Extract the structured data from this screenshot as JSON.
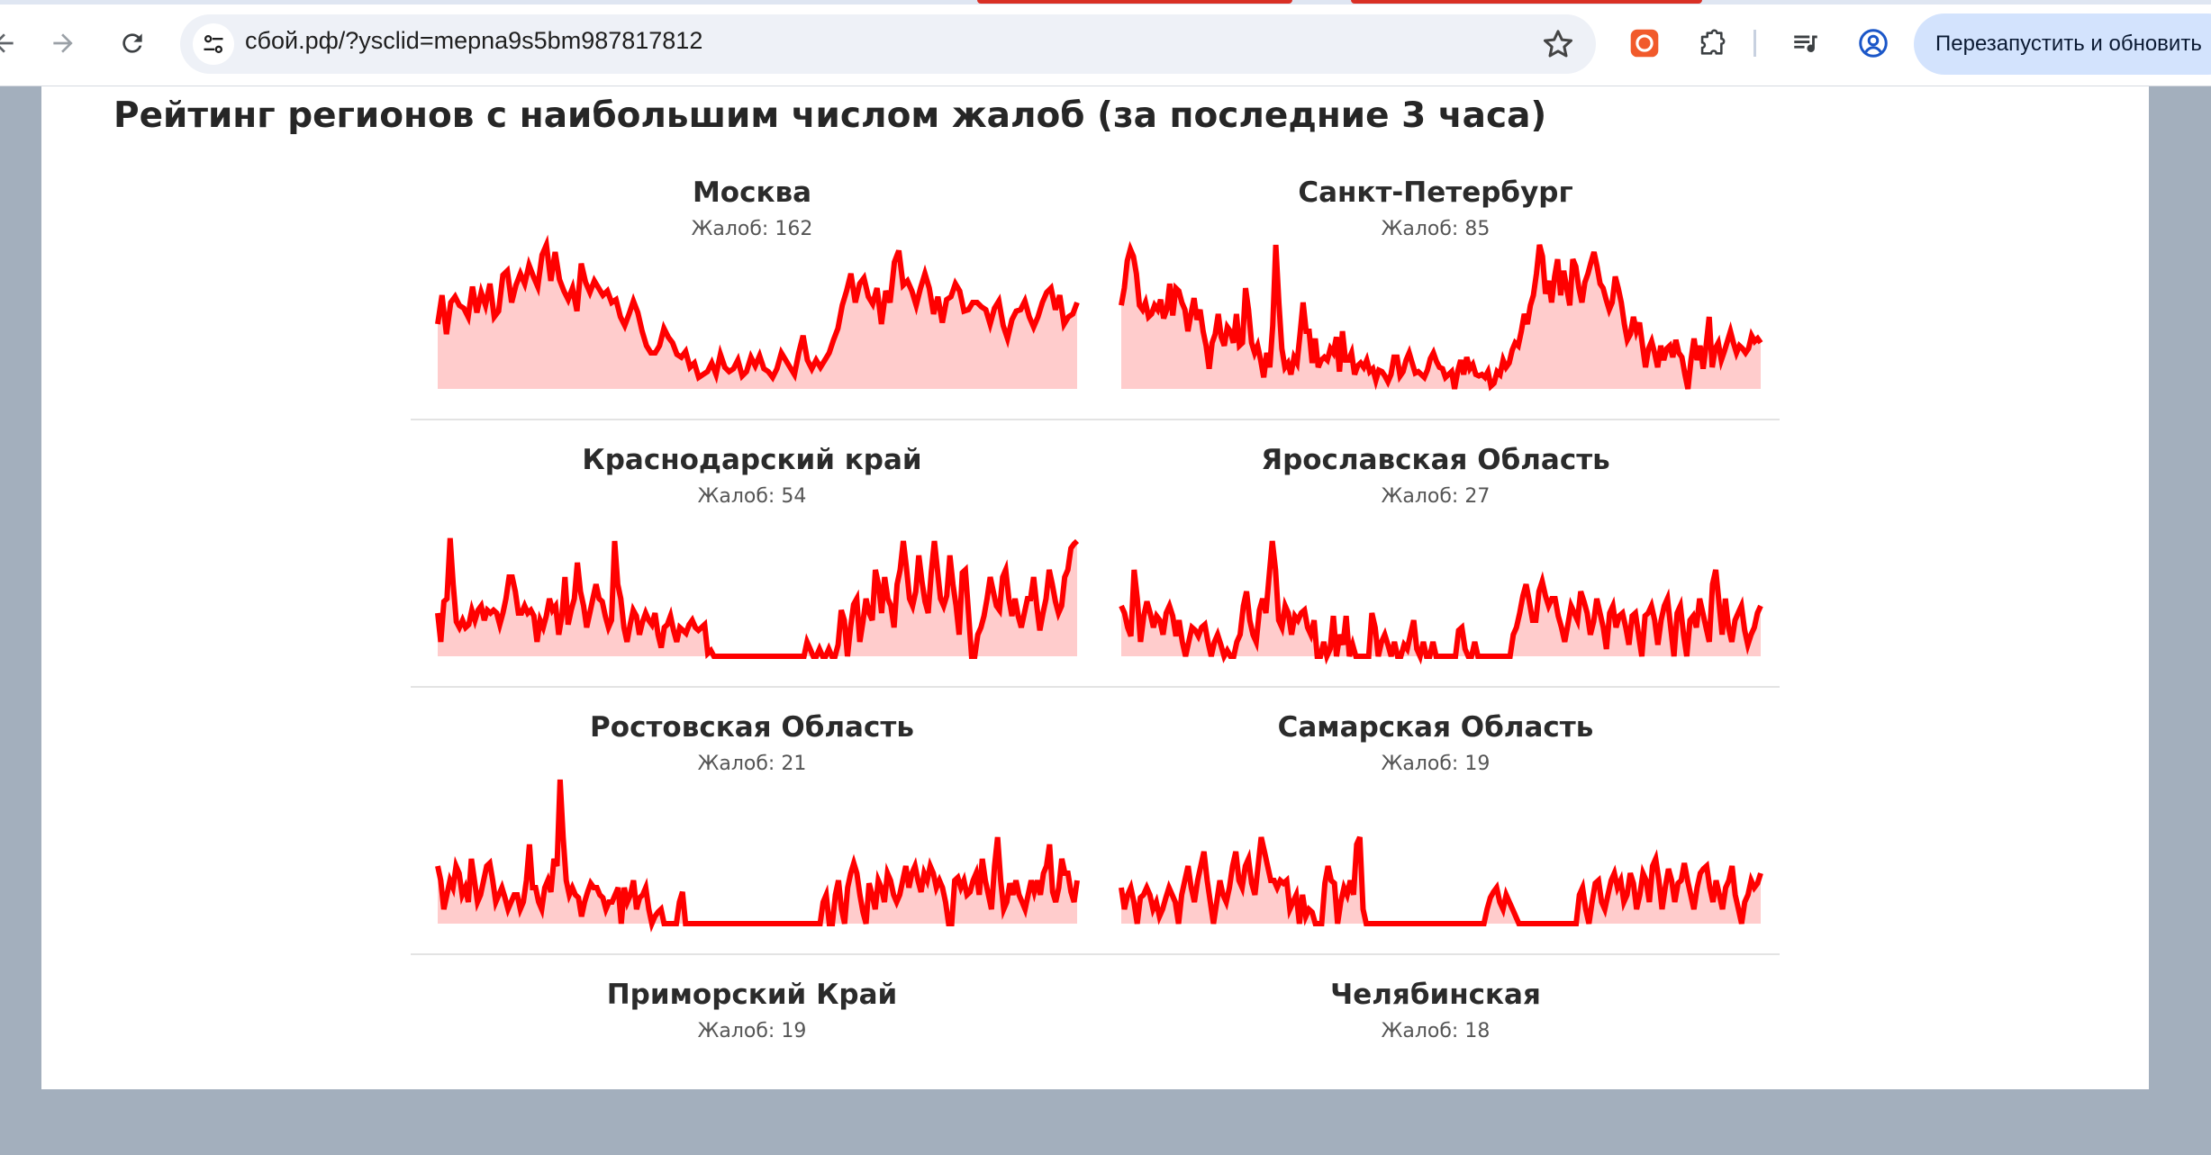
{
  "browser": {
    "url": "сбой.рф/?ysclid=mepna9s5bm987817812",
    "restart_label": "Перезапустить и обновить"
  },
  "page": {
    "heading": "Рейтинг регионов с наибольшим числом жалоб (за последние 3 часа)"
  },
  "colors": {
    "line": "#ff0000",
    "fill": "#ffcccc"
  },
  "chart_data": [
    {
      "type": "area",
      "title": "Москва",
      "subtitle": "Жалоб: 162",
      "values": [
        45,
        65,
        38,
        60,
        64,
        58,
        56,
        50,
        71,
        53,
        67,
        58,
        73,
        50,
        54,
        79,
        82,
        60,
        72,
        80,
        73,
        86,
        78,
        71,
        93,
        100,
        75,
        95,
        76,
        68,
        62,
        70,
        54,
        87,
        74,
        67,
        75,
        70,
        65,
        68,
        60,
        62,
        50,
        44,
        52,
        61,
        53,
        40,
        30,
        25,
        25,
        30,
        42,
        36,
        32,
        24,
        22,
        26,
        15,
        18,
        8,
        10,
        12,
        18,
        10,
        24,
        15,
        12,
        14,
        20,
        9,
        12,
        22,
        16,
        23,
        14,
        12,
        8,
        14,
        25,
        20,
        15,
        10,
        25,
        37,
        20,
        14,
        20,
        15,
        20,
        25,
        34,
        42,
        58,
        68,
        80,
        60,
        73,
        77,
        64,
        59,
        70,
        45,
        68,
        60,
        88,
        96,
        72,
        75,
        68,
        58,
        70,
        80,
        70,
        52,
        64,
        46,
        62,
        64,
        73,
        68,
        54,
        55,
        60,
        60,
        57,
        55,
        45,
        56,
        61,
        44,
        35,
        48,
        54,
        55,
        61,
        50,
        43,
        50,
        60,
        67,
        70,
        55,
        65,
        45,
        50,
        52,
        60
      ]
    },
    {
      "type": "area",
      "title": "Санкт-Петербург",
      "subtitle": "Жалоб: 85",
      "values": [
        58,
        70,
        89,
        97,
        92,
        80,
        58,
        55,
        60,
        50,
        52,
        58,
        55,
        62,
        49,
        55,
        73,
        51,
        70,
        68,
        60,
        55,
        40,
        52,
        63,
        48,
        55,
        40,
        30,
        14,
        32,
        38,
        52,
        36,
        30,
        43,
        40,
        32,
        52,
        30,
        32,
        70,
        55,
        32,
        25,
        30,
        20,
        8,
        25,
        15,
        44,
        100,
        60,
        28,
        15,
        18,
        10,
        22,
        18,
        38,
        60,
        40,
        40,
        18,
        35,
        15,
        20,
        22,
        20,
        28,
        25,
        36,
        12,
        40,
        20,
        20,
        25,
        10,
        16,
        18,
        15,
        20,
        12,
        14,
        6,
        13,
        12,
        9,
        5,
        10,
        22,
        22,
        9,
        12,
        20,
        25,
        18,
        11,
        12,
        10,
        8,
        13,
        21,
        25,
        19,
        15,
        14,
        8,
        10,
        12,
        0,
        12,
        20,
        10,
        22,
        14,
        17,
        10,
        9,
        10,
        8,
        12,
        2,
        4,
        12,
        10,
        20,
        15,
        18,
        27,
        32,
        30,
        40,
        52,
        45,
        58,
        65,
        80,
        100,
        92,
        66,
        75,
        60,
        78,
        90,
        65,
        82,
        70,
        58,
        90,
        85,
        70,
        60,
        74,
        80,
        88,
        95,
        85,
        73,
        70,
        62,
        55,
        60,
        78,
        70,
        60,
        45,
        34,
        38,
        50,
        40,
        46,
        30,
        15,
        28,
        33,
        25,
        15,
        30,
        20,
        28,
        30,
        22,
        34,
        25,
        22,
        10,
        0,
        20,
        35,
        20,
        30,
        14,
        30,
        50,
        15,
        28,
        32,
        20,
        26,
        33,
        40,
        32,
        25,
        30,
        28,
        25,
        28,
        37,
        33,
        35,
        32
      ]
    },
    {
      "type": "area",
      "title": "Краснодарский край",
      "subtitle": "Жалоб: 54",
      "values": [
        30,
        10,
        38,
        40,
        82,
        50,
        24,
        20,
        25,
        20,
        22,
        32,
        25,
        32,
        35,
        25,
        32,
        30,
        32,
        30,
        22,
        30,
        40,
        55,
        55,
        45,
        30,
        30,
        35,
        30,
        32,
        28,
        10,
        25,
        20,
        28,
        40,
        32,
        35,
        15,
        28,
        55,
        22,
        32,
        40,
        65,
        45,
        35,
        20,
        30,
        40,
        50,
        40,
        38,
        28,
        20,
        25,
        80,
        50,
        40,
        20,
        10,
        22,
        32,
        28,
        15,
        24,
        30,
        25,
        22,
        30,
        15,
        6,
        20,
        22,
        28,
        18,
        10,
        20,
        18,
        16,
        22,
        25,
        20,
        18,
        20,
        22,
        2,
        4,
        0,
        0,
        0,
        0,
        0,
        0,
        0,
        0,
        0,
        0,
        0,
        0,
        0,
        0,
        0,
        0,
        0,
        0,
        0,
        0,
        0,
        0,
        0,
        0,
        0,
        0,
        0,
        0,
        0,
        0,
        10,
        5,
        0,
        0,
        5,
        0,
        0,
        5,
        0,
        0,
        8,
        32,
        25,
        0,
        20,
        36,
        40,
        10,
        24,
        40,
        30,
        25,
        60,
        50,
        30,
        55,
        40,
        35,
        20,
        50,
        60,
        80,
        62,
        40,
        35,
        45,
        70,
        52,
        38,
        30,
        58,
        80,
        60,
        40,
        35,
        42,
        70,
        50,
        35,
        15,
        58,
        60,
        30,
        0,
        0,
        15,
        20,
        28,
        40,
        55,
        45,
        35,
        32,
        55,
        60,
        40,
        28,
        40,
        28,
        20,
        30,
        40,
        40,
        55,
        35,
        18,
        30,
        40,
        60,
        50,
        38,
        30,
        35,
        55,
        60,
        75,
        78,
        80
      ]
    },
    {
      "type": "area",
      "title": "Ярославская Область",
      "subtitle": "Жалоб: 27",
      "values": [
        35,
        30,
        20,
        14,
        60,
        40,
        10,
        28,
        38,
        30,
        20,
        28,
        25,
        15,
        30,
        35,
        28,
        14,
        25,
        10,
        0,
        10,
        20,
        18,
        14,
        20,
        22,
        10,
        0,
        10,
        15,
        8,
        0,
        4,
        0,
        0,
        10,
        15,
        35,
        45,
        25,
        15,
        10,
        32,
        40,
        30,
        55,
        80,
        60,
        25,
        20,
        35,
        30,
        15,
        28,
        25,
        30,
        32,
        20,
        15,
        25,
        0,
        0,
        10,
        0,
        5,
        28,
        0,
        15,
        8,
        28,
        0,
        8,
        0,
        0,
        0,
        0,
        0,
        30,
        20,
        0,
        10,
        15,
        8,
        0,
        10,
        0,
        0,
        8,
        5,
        15,
        25,
        5,
        0,
        10,
        0,
        0,
        10,
        0,
        0,
        0,
        0,
        0,
        0,
        0,
        18,
        20,
        5,
        0,
        0,
        10,
        0,
        0,
        0,
        0,
        0,
        0,
        0,
        0,
        0,
        0,
        0,
        15,
        20,
        30,
        42,
        50,
        38,
        25,
        25,
        45,
        52,
        42,
        35,
        40,
        40,
        28,
        20,
        10,
        22,
        35,
        30,
        25,
        45,
        38,
        30,
        15,
        24,
        40,
        30,
        20,
        5,
        30,
        35,
        20,
        28,
        30,
        20,
        8,
        28,
        30,
        15,
        0,
        28,
        30,
        35,
        25,
        8,
        25,
        35,
        40,
        20,
        0,
        30,
        35,
        15,
        0,
        25,
        28,
        20,
        40,
        30,
        20,
        10,
        50,
        60,
        38,
        15,
        40,
        20,
        10,
        25,
        30,
        35,
        18,
        8,
        15,
        20,
        30,
        35
      ]
    },
    {
      "type": "area",
      "title": "Ростовская Область",
      "subtitle": "Жалоб: 21",
      "values": [
        40,
        30,
        10,
        20,
        30,
        25,
        40,
        35,
        20,
        25,
        15,
        45,
        30,
        15,
        20,
        30,
        40,
        42,
        30,
        15,
        20,
        25,
        18,
        10,
        15,
        20,
        20,
        10,
        15,
        30,
        55,
        25,
        25,
        15,
        10,
        25,
        30,
        22,
        45,
        40,
        100,
        60,
        30,
        20,
        25,
        20,
        18,
        5,
        15,
        22,
        28,
        25,
        25,
        20,
        18,
        10,
        15,
        15,
        20,
        25,
        0,
        25,
        15,
        20,
        30,
        10,
        18,
        20,
        25,
        10,
        0,
        5,
        8,
        10,
        0,
        0,
        0,
        0,
        0,
        15,
        22,
        0,
        0,
        0,
        0,
        0,
        0,
        0,
        0,
        0,
        0,
        0,
        0,
        0,
        0,
        0,
        0,
        0,
        0,
        0,
        0,
        0,
        0,
        0,
        0,
        0,
        0,
        0,
        0,
        0,
        0,
        0,
        0,
        0,
        0,
        0,
        0,
        0,
        0,
        0,
        0,
        0,
        0,
        0,
        0,
        0,
        15,
        20,
        0,
        0,
        20,
        30,
        10,
        0,
        25,
        35,
        42,
        35,
        20,
        8,
        0,
        28,
        20,
        10,
        30,
        25,
        15,
        35,
        30,
        20,
        15,
        20,
        30,
        40,
        25,
        35,
        40,
        30,
        22,
        35,
        30,
        40,
        35,
        25,
        30,
        25,
        15,
        0,
        0,
        30,
        32,
        25,
        30,
        20,
        22,
        30,
        35,
        20,
        45,
        30,
        20,
        10,
        40,
        60,
        30,
        10,
        15,
        28,
        20,
        30,
        20,
        15,
        10,
        20,
        30,
        22,
        30,
        20,
        35,
        40,
        55,
        22,
        15,
        25,
        45,
        35,
        35,
        22,
        15,
        30
      ]
    },
    {
      "type": "area",
      "title": "Самарская Область",
      "subtitle": "Жалоб: 19",
      "values": [
        25,
        10,
        20,
        25,
        15,
        0,
        18,
        20,
        25,
        20,
        10,
        15,
        5,
        10,
        18,
        25,
        20,
        15,
        0,
        20,
        30,
        40,
        25,
        15,
        30,
        40,
        50,
        30,
        15,
        0,
        15,
        30,
        20,
        15,
        25,
        40,
        50,
        30,
        25,
        40,
        45,
        28,
        20,
        40,
        60,
        50,
        40,
        30,
        30,
        25,
        30,
        28,
        30,
        10,
        15,
        20,
        0,
        20,
        5,
        10,
        8,
        0,
        0,
        0,
        28,
        40,
        30,
        28,
        0,
        15,
        25,
        20,
        30,
        20,
        55,
        60,
        10,
        0,
        0,
        0,
        0,
        0,
        0,
        0,
        0,
        0,
        0,
        0,
        0,
        0,
        0,
        0,
        0,
        0,
        0,
        0,
        0,
        0,
        0,
        0,
        0,
        0,
        0,
        0,
        0,
        0,
        0,
        0,
        0,
        0,
        0,
        0,
        0,
        0,
        0,
        10,
        18,
        22,
        25,
        15,
        10,
        20,
        15,
        10,
        5,
        0,
        0,
        0,
        0,
        0,
        0,
        0,
        0,
        0,
        0,
        0,
        0,
        0,
        0,
        0,
        0,
        0,
        0,
        0,
        20,
        25,
        10,
        0,
        15,
        28,
        30,
        15,
        10,
        20,
        30,
        35,
        25,
        30,
        15,
        20,
        35,
        28,
        10,
        20,
        35,
        30,
        15,
        40,
        45,
        30,
        10,
        25,
        38,
        30,
        15,
        28,
        30,
        42,
        30,
        20,
        10,
        25,
        35,
        38,
        40,
        25,
        15,
        30,
        20,
        10,
        25,
        30,
        40,
        20,
        10,
        0,
        15,
        20,
        30,
        25,
        28,
        35
      ]
    },
    {
      "type": "area",
      "title": "Приморский Край",
      "subtitle": "Жалоб: 19",
      "values": []
    },
    {
      "type": "area",
      "title": "Челябинская",
      "subtitle": "Жалоб: 18",
      "values": []
    }
  ]
}
